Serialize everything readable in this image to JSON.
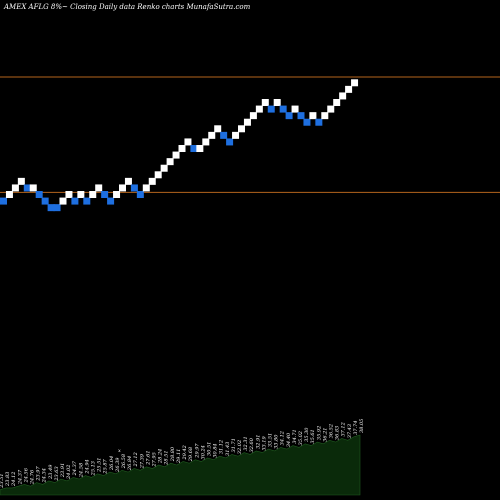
{
  "chart_data": {
    "type": "renko",
    "title": "AMEX  AFLG 8%~   Closing Daily data  Renko  charts MunafaSutra.com",
    "colors": {
      "background": "#000000",
      "up_brick": "#ffffff",
      "down_brick": "#1e6fe0",
      "level_line": "#b5651d",
      "volume_fill": "#0a2a0a",
      "volume_stroke": "#1f5a1f",
      "text": "#ffffff"
    },
    "bricks": [
      {
        "y": 5.1,
        "dir": "down"
      },
      {
        "y": 5.55,
        "dir": "up"
      },
      {
        "y": 6.0,
        "dir": "up"
      },
      {
        "y": 6.45,
        "dir": "up"
      },
      {
        "y": 6.0,
        "dir": "down"
      },
      {
        "y": 6.0,
        "dir": "up"
      },
      {
        "y": 5.55,
        "dir": "down"
      },
      {
        "y": 5.1,
        "dir": "down"
      },
      {
        "y": 4.65,
        "dir": "down"
      },
      {
        "y": 4.65,
        "dir": "down"
      },
      {
        "y": 5.1,
        "dir": "up"
      },
      {
        "y": 5.55,
        "dir": "up"
      },
      {
        "y": 5.1,
        "dir": "down"
      },
      {
        "y": 5.55,
        "dir": "up"
      },
      {
        "y": 5.1,
        "dir": "down"
      },
      {
        "y": 5.55,
        "dir": "up"
      },
      {
        "y": 6.0,
        "dir": "up"
      },
      {
        "y": 5.55,
        "dir": "down"
      },
      {
        "y": 5.1,
        "dir": "down"
      },
      {
        "y": 5.55,
        "dir": "up"
      },
      {
        "y": 6.0,
        "dir": "up"
      },
      {
        "y": 6.45,
        "dir": "up"
      },
      {
        "y": 6.0,
        "dir": "down"
      },
      {
        "y": 5.55,
        "dir": "down"
      },
      {
        "y": 6.0,
        "dir": "up"
      },
      {
        "y": 6.45,
        "dir": "up"
      },
      {
        "y": 6.9,
        "dir": "up"
      },
      {
        "y": 7.35,
        "dir": "up"
      },
      {
        "y": 7.8,
        "dir": "up"
      },
      {
        "y": 8.25,
        "dir": "up"
      },
      {
        "y": 8.7,
        "dir": "up"
      },
      {
        "y": 9.15,
        "dir": "up"
      },
      {
        "y": 8.7,
        "dir": "down"
      },
      {
        "y": 8.7,
        "dir": "up"
      },
      {
        "y": 9.15,
        "dir": "up"
      },
      {
        "y": 9.6,
        "dir": "up"
      },
      {
        "y": 10.05,
        "dir": "up"
      },
      {
        "y": 9.6,
        "dir": "down"
      },
      {
        "y": 9.15,
        "dir": "down"
      },
      {
        "y": 9.6,
        "dir": "up"
      },
      {
        "y": 10.05,
        "dir": "up"
      },
      {
        "y": 10.5,
        "dir": "up"
      },
      {
        "y": 10.95,
        "dir": "up"
      },
      {
        "y": 11.4,
        "dir": "up"
      },
      {
        "y": 11.85,
        "dir": "up"
      },
      {
        "y": 11.4,
        "dir": "down"
      },
      {
        "y": 11.85,
        "dir": "up"
      },
      {
        "y": 11.4,
        "dir": "down"
      },
      {
        "y": 10.95,
        "dir": "down"
      },
      {
        "y": 11.4,
        "dir": "up"
      },
      {
        "y": 10.95,
        "dir": "down"
      },
      {
        "y": 10.5,
        "dir": "down"
      },
      {
        "y": 10.95,
        "dir": "up"
      },
      {
        "y": 10.5,
        "dir": "down"
      },
      {
        "y": 10.95,
        "dir": "up"
      },
      {
        "y": 11.4,
        "dir": "up"
      },
      {
        "y": 11.85,
        "dir": "up"
      },
      {
        "y": 12.3,
        "dir": "up"
      },
      {
        "y": 12.75,
        "dir": "up"
      },
      {
        "y": 13.2,
        "dir": "up"
      }
    ],
    "levels": [
      13.6,
      5.7
    ],
    "yrange": [
      -14,
      17.5
    ],
    "volume": [
      3,
      4,
      4,
      5,
      6,
      5,
      7,
      6,
      8,
      7,
      9,
      8,
      10,
      9,
      11,
      10,
      12,
      11,
      13,
      12,
      14,
      13,
      15,
      14,
      16,
      15,
      17,
      16,
      18,
      17,
      19,
      18,
      20,
      19,
      21,
      20,
      22,
      21,
      23,
      22,
      24,
      23,
      25,
      24,
      26,
      25,
      27,
      26,
      28,
      27,
      29,
      28,
      30,
      29,
      31,
      30,
      32,
      31,
      33,
      34
    ],
    "volume_labels": [
      "23.51",
      "23.83",
      "24.12",
      "24.37",
      "24.56",
      "24.76",
      "23.97",
      "24.34",
      "23.49",
      "23.63",
      "23.91",
      "24.02",
      "24.37",
      "24.58",
      "24.94",
      "25.13",
      "25.51",
      "25.87",
      "26.04",
      "26.39",
      "26.58",
      "26.84",
      "27.12",
      "27.39",
      "27.61",
      "27.95",
      "28.24",
      "28.51",
      "28.80",
      "29.11",
      "29.42",
      "29.68",
      "29.97",
      "30.24",
      "30.51",
      "30.84",
      "31.12",
      "31.43",
      "31.71",
      "32.02",
      "32.31",
      "32.60",
      "32.91",
      "33.19",
      "33.51",
      "33.80",
      "34.12",
      "34.40",
      "34.71",
      "35.02",
      "35.30",
      "35.61",
      "35.92",
      "36.21",
      "36.52",
      "36.83",
      "37.12",
      "37.43",
      "37.74",
      "38.05"
    ],
    "marker_label": "x"
  }
}
